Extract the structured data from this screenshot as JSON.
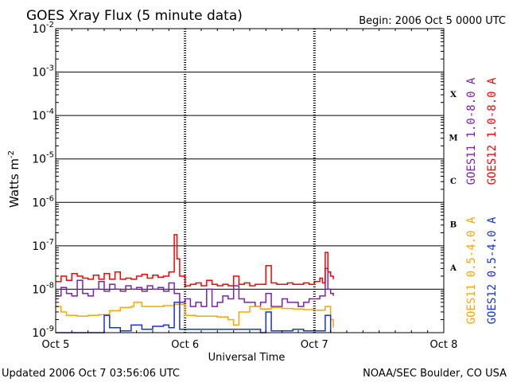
{
  "chart_data": {
    "type": "line",
    "title": "GOES Xray Flux (5 minute data)",
    "begin_label": "Begin:  2006 Oct 5 0000 UTC",
    "xlabel": "Universal Time",
    "ylabel": "Watts m",
    "ylabel_exp": "-2",
    "yscale": "log",
    "ylim": [
      1e-09,
      0.01
    ],
    "xlim": [
      "2006-10-05 00:00",
      "2006-10-08 00:00"
    ],
    "x_ticks": [
      "Oct 5",
      "Oct 6",
      "Oct 7",
      "Oct 8"
    ],
    "y_ticks": [
      {
        "base": "10",
        "exp": "-2"
      },
      {
        "base": "10",
        "exp": "-3"
      },
      {
        "base": "10",
        "exp": "-4"
      },
      {
        "base": "10",
        "exp": "-5"
      },
      {
        "base": "10",
        "exp": "-6"
      },
      {
        "base": "10",
        "exp": "-7"
      },
      {
        "base": "10",
        "exp": "-8"
      },
      {
        "base": "10",
        "exp": "-9"
      }
    ],
    "flare_classes": [
      "X",
      "M",
      "C",
      "B",
      "A"
    ],
    "grid": "horizontal lines at each decade; dashed vertical lines at day boundaries",
    "legend_placement": "right side, vertical",
    "series": [
      {
        "name": "GOES11 1.0-8.0 A",
        "color": "#7b22b4",
        "points": [
          [
            "2006-10-05 00:00",
            7e-09
          ],
          [
            "2006-10-05 01:00",
            1.1e-08
          ],
          [
            "2006-10-05 02:00",
            8e-09
          ],
          [
            "2006-10-05 03:00",
            7e-09
          ],
          [
            "2006-10-05 04:00",
            1.6e-08
          ],
          [
            "2006-10-05 05:00",
            8e-09
          ],
          [
            "2006-10-05 06:00",
            7e-09
          ],
          [
            "2006-10-05 07:00",
            1e-08
          ],
          [
            "2006-10-05 08:00",
            1.5e-08
          ],
          [
            "2006-10-05 09:00",
            9e-09
          ],
          [
            "2006-10-05 10:00",
            1.3e-08
          ],
          [
            "2006-10-05 11:00",
            1e-08
          ],
          [
            "2006-10-05 12:00",
            9e-09
          ],
          [
            "2006-10-05 13:00",
            1.2e-08
          ],
          [
            "2006-10-05 14:00",
            1e-08
          ],
          [
            "2006-10-05 15:00",
            1.1e-08
          ],
          [
            "2006-10-05 16:00",
            9e-09
          ],
          [
            "2006-10-05 17:00",
            1.2e-08
          ],
          [
            "2006-10-05 18:00",
            1e-08
          ],
          [
            "2006-10-05 19:00",
            1.1e-08
          ],
          [
            "2006-10-05 20:00",
            9e-09
          ],
          [
            "2006-10-05 21:00",
            1.4e-08
          ],
          [
            "2006-10-05 22:00",
            8e-09
          ],
          [
            "2006-10-05 23:00",
            5e-09
          ],
          [
            "2006-10-06 00:00",
            6e-09
          ],
          [
            "2006-10-06 01:00",
            4e-09
          ],
          [
            "2006-10-06 02:00",
            5e-09
          ],
          [
            "2006-10-06 03:00",
            4e-09
          ],
          [
            "2006-10-06 04:00",
            1e-08
          ],
          [
            "2006-10-06 05:00",
            4e-09
          ],
          [
            "2006-10-06 06:00",
            5e-09
          ],
          [
            "2006-10-06 07:00",
            7e-09
          ],
          [
            "2006-10-06 08:00",
            6e-09
          ],
          [
            "2006-10-06 09:00",
            1.2e-08
          ],
          [
            "2006-10-06 10:00",
            6e-09
          ],
          [
            "2006-10-06 11:00",
            5e-09
          ],
          [
            "2006-10-06 12:00",
            5e-09
          ],
          [
            "2006-10-06 13:00",
            4e-09
          ],
          [
            "2006-10-06 14:00",
            5e-09
          ],
          [
            "2006-10-06 15:00",
            8e-09
          ],
          [
            "2006-10-06 16:00",
            4e-09
          ],
          [
            "2006-10-06 17:00",
            4e-09
          ],
          [
            "2006-10-06 18:00",
            6e-09
          ],
          [
            "2006-10-06 19:00",
            5e-09
          ],
          [
            "2006-10-06 20:00",
            5e-09
          ],
          [
            "2006-10-06 21:00",
            4e-09
          ],
          [
            "2006-10-06 22:00",
            5e-09
          ],
          [
            "2006-10-06 23:00",
            6e-09
          ],
          [
            "2006-10-07 00:00",
            6e-09
          ],
          [
            "2006-10-07 01:00",
            7e-09
          ],
          [
            "2006-10-07 02:00",
            3e-08
          ],
          [
            "2006-10-07 02:30",
            1e-08
          ],
          [
            "2006-10-07 03:00",
            8e-09
          ],
          [
            "2006-10-07 03:30",
            7e-09
          ]
        ]
      },
      {
        "name": "GOES12 1.0-8.0 A",
        "color": "#ff0000",
        "points": [
          [
            "2006-10-05 00:00",
            1.5e-08
          ],
          [
            "2006-10-05 01:00",
            2e-08
          ],
          [
            "2006-10-05 02:00",
            1.6e-08
          ],
          [
            "2006-10-05 03:00",
            2.3e-08
          ],
          [
            "2006-10-05 04:00",
            2e-08
          ],
          [
            "2006-10-05 05:00",
            1.8e-08
          ],
          [
            "2006-10-05 06:00",
            1.7e-08
          ],
          [
            "2006-10-05 07:00",
            2.1e-08
          ],
          [
            "2006-10-05 08:00",
            1.7e-08
          ],
          [
            "2006-10-05 09:00",
            2.3e-08
          ],
          [
            "2006-10-05 10:00",
            1.7e-08
          ],
          [
            "2006-10-05 11:00",
            2.5e-08
          ],
          [
            "2006-10-05 12:00",
            1.7e-08
          ],
          [
            "2006-10-05 13:00",
            1.8e-08
          ],
          [
            "2006-10-05 14:00",
            1.7e-08
          ],
          [
            "2006-10-05 15:00",
            2e-08
          ],
          [
            "2006-10-05 16:00",
            2.2e-08
          ],
          [
            "2006-10-05 17:00",
            1.8e-08
          ],
          [
            "2006-10-05 18:00",
            2.1e-08
          ],
          [
            "2006-10-05 19:00",
            1.9e-08
          ],
          [
            "2006-10-05 20:00",
            2e-08
          ],
          [
            "2006-10-05 21:00",
            2.5e-08
          ],
          [
            "2006-10-05 22:00",
            1.8e-07
          ],
          [
            "2006-10-05 22:30",
            5e-08
          ],
          [
            "2006-10-05 23:00",
            2e-08
          ],
          [
            "2006-10-06 00:00",
            1.2e-08
          ],
          [
            "2006-10-06 01:00",
            1.3e-08
          ],
          [
            "2006-10-06 02:00",
            1.4e-08
          ],
          [
            "2006-10-06 03:00",
            1.2e-08
          ],
          [
            "2006-10-06 04:00",
            1.6e-08
          ],
          [
            "2006-10-06 05:00",
            1.3e-08
          ],
          [
            "2006-10-06 06:00",
            1.2e-08
          ],
          [
            "2006-10-06 07:00",
            1.3e-08
          ],
          [
            "2006-10-06 08:00",
            1.2e-08
          ],
          [
            "2006-10-06 09:00",
            2e-08
          ],
          [
            "2006-10-06 10:00",
            1.3e-08
          ],
          [
            "2006-10-06 11:00",
            1.4e-08
          ],
          [
            "2006-10-06 12:00",
            1.2e-08
          ],
          [
            "2006-10-06 13:00",
            1.3e-08
          ],
          [
            "2006-10-06 14:00",
            1.3e-08
          ],
          [
            "2006-10-06 15:00",
            3.5e-08
          ],
          [
            "2006-10-06 16:00",
            1.4e-08
          ],
          [
            "2006-10-06 17:00",
            1.3e-08
          ],
          [
            "2006-10-06 18:00",
            1.3e-08
          ],
          [
            "2006-10-06 19:00",
            1.4e-08
          ],
          [
            "2006-10-06 20:00",
            1.3e-08
          ],
          [
            "2006-10-06 21:00",
            1.3e-08
          ],
          [
            "2006-10-06 22:00",
            1.4e-08
          ],
          [
            "2006-10-06 23:00",
            1.3e-08
          ],
          [
            "2006-10-07 00:00",
            1.5e-08
          ],
          [
            "2006-10-07 01:00",
            1.8e-08
          ],
          [
            "2006-10-07 01:30",
            1.4e-08
          ],
          [
            "2006-10-07 02:00",
            7e-08
          ],
          [
            "2006-10-07 02:30",
            2.5e-08
          ],
          [
            "2006-10-07 03:00",
            2e-08
          ],
          [
            "2006-10-07 03:30",
            1.7e-08
          ]
        ]
      },
      {
        "name": "GOES11 0.5-4.0 A",
        "color": "#ffa500",
        "points": [
          [
            "2006-10-05 00:00",
            4e-09
          ],
          [
            "2006-10-05 01:00",
            3e-09
          ],
          [
            "2006-10-05 02:00",
            2.5e-09
          ],
          [
            "2006-10-05 04:00",
            2.4e-09
          ],
          [
            "2006-10-05 06:00",
            2.5e-09
          ],
          [
            "2006-10-05 08:00",
            2.6e-09
          ],
          [
            "2006-10-05 10:00",
            3.2e-09
          ],
          [
            "2006-10-05 12:00",
            3.8e-09
          ],
          [
            "2006-10-05 14:00",
            4e-09
          ],
          [
            "2006-10-05 14:30",
            5e-09
          ],
          [
            "2006-10-05 16:00",
            4e-09
          ],
          [
            "2006-10-05 18:00",
            4e-09
          ],
          [
            "2006-10-05 20:00",
            4.2e-09
          ],
          [
            "2006-10-05 22:00",
            4.5e-09
          ],
          [
            "2006-10-06 00:00",
            2.5e-09
          ],
          [
            "2006-10-06 02:00",
            2.4e-09
          ],
          [
            "2006-10-06 04:00",
            2.4e-09
          ],
          [
            "2006-10-06 06:00",
            2.3e-09
          ],
          [
            "2006-10-06 08:00",
            2e-09
          ],
          [
            "2006-10-06 09:00",
            1.5e-09
          ],
          [
            "2006-10-06 10:00",
            3e-09
          ],
          [
            "2006-10-06 12:00",
            4e-09
          ],
          [
            "2006-10-06 14:00",
            3.5e-09
          ],
          [
            "2006-10-06 16:00",
            3.8e-09
          ],
          [
            "2006-10-06 18:00",
            3.6e-09
          ],
          [
            "2006-10-06 20:00",
            3.5e-09
          ],
          [
            "2006-10-06 22:00",
            3.4e-09
          ],
          [
            "2006-10-07 00:00",
            3.3e-09
          ],
          [
            "2006-10-07 02:00",
            4e-09
          ],
          [
            "2006-10-07 03:00",
            2e-09
          ],
          [
            "2006-10-07 03:30",
            1.3e-09
          ]
        ]
      },
      {
        "name": "GOES12 0.5-4.0 A",
        "color": "#1630e6",
        "points": [
          [
            "2006-10-05 00:00",
            1e-09
          ],
          [
            "2006-10-05 01:00",
            1e-09
          ],
          [
            "2006-10-05 06:00",
            1e-09
          ],
          [
            "2006-10-05 08:00",
            1e-09
          ],
          [
            "2006-10-05 09:00",
            2.5e-09
          ],
          [
            "2006-10-05 10:00",
            1.3e-09
          ],
          [
            "2006-10-05 12:00",
            1.1e-09
          ],
          [
            "2006-10-05 14:00",
            1.5e-09
          ],
          [
            "2006-10-05 16:00",
            1.2e-09
          ],
          [
            "2006-10-05 18:00",
            1.4e-09
          ],
          [
            "2006-10-05 20:00",
            1.5e-09
          ],
          [
            "2006-10-05 21:00",
            1.3e-09
          ],
          [
            "2006-10-05 22:00",
            5e-09
          ],
          [
            "2006-10-05 23:00",
            1.2e-09
          ],
          [
            "2006-10-06 14:00",
            1e-09
          ],
          [
            "2006-10-06 15:00",
            3e-09
          ],
          [
            "2006-10-06 16:00",
            1.1e-09
          ],
          [
            "2006-10-06 18:00",
            1.1e-09
          ],
          [
            "2006-10-06 20:00",
            1.2e-09
          ],
          [
            "2006-10-06 22:00",
            1.1e-09
          ],
          [
            "2006-10-07 00:00",
            1.1e-09
          ],
          [
            "2006-10-07 01:00",
            1.1e-09
          ],
          [
            "2006-10-07 02:00",
            2.5e-09
          ],
          [
            "2006-10-07 03:00",
            1e-09
          ]
        ]
      }
    ]
  },
  "footer": {
    "updated": "Updated 2006 Oct  7 03:56:06 UTC",
    "source": "NOAA/SEC Boulder, CO USA"
  }
}
